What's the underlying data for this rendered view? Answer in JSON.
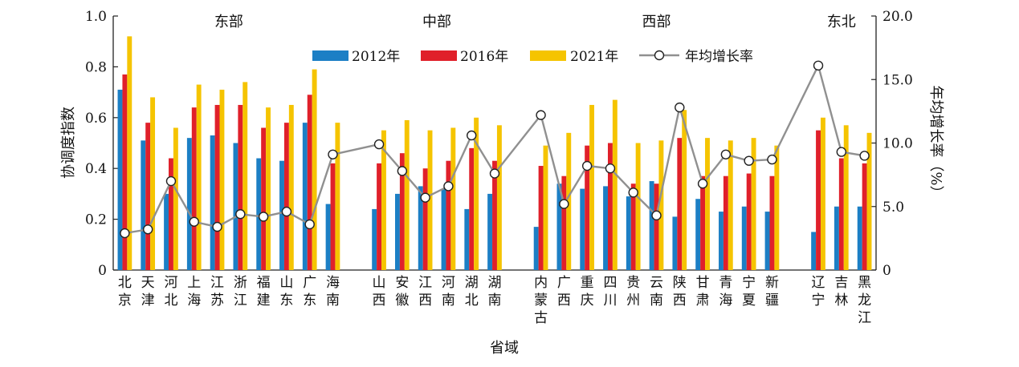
{
  "chart_data": {
    "type": "bar",
    "xlabel": "省域",
    "ylabel": "协调度指数",
    "y2label": "年均增长率（%）",
    "ylim": [
      0,
      1.0
    ],
    "y2lim": [
      0,
      20.0
    ],
    "yticks": [
      "0",
      "0.2",
      "0.4",
      "0.6",
      "0.8",
      "1.0"
    ],
    "y2ticks": [
      "0",
      "5.0",
      "10.0",
      "15.0",
      "20.0"
    ],
    "legend": [
      "2012年",
      "2016年",
      "2021年",
      "年均增长率"
    ],
    "colors": {
      "s2012": "#1c7fc5",
      "s2016": "#e0202a",
      "s2021": "#f5c400",
      "rate": "#909090"
    },
    "regions": [
      {
        "name": "东部",
        "provinces": [
          {
            "label": [
              "北",
              "京"
            ],
            "v2012": 0.71,
            "v2016": 0.77,
            "v2021": 0.92,
            "rate": 2.9
          },
          {
            "label": [
              "天",
              "津"
            ],
            "v2012": 0.51,
            "v2016": 0.58,
            "v2021": 0.68,
            "rate": 3.2
          },
          {
            "label": [
              "河",
              "北"
            ],
            "v2012": 0.3,
            "v2016": 0.44,
            "v2021": 0.56,
            "rate": 7.0
          },
          {
            "label": [
              "上",
              "海"
            ],
            "v2012": 0.52,
            "v2016": 0.64,
            "v2021": 0.73,
            "rate": 3.8
          },
          {
            "label": [
              "江",
              "苏"
            ],
            "v2012": 0.53,
            "v2016": 0.65,
            "v2021": 0.71,
            "rate": 3.4
          },
          {
            "label": [
              "浙",
              "江"
            ],
            "v2012": 0.5,
            "v2016": 0.65,
            "v2021": 0.74,
            "rate": 4.4
          },
          {
            "label": [
              "福",
              "建"
            ],
            "v2012": 0.44,
            "v2016": 0.56,
            "v2021": 0.64,
            "rate": 4.2
          },
          {
            "label": [
              "山",
              "东"
            ],
            "v2012": 0.43,
            "v2016": 0.58,
            "v2021": 0.65,
            "rate": 4.6
          },
          {
            "label": [
              "广",
              "东"
            ],
            "v2012": 0.58,
            "v2016": 0.69,
            "v2021": 0.79,
            "rate": 3.6
          },
          {
            "label": [
              "海",
              "南"
            ],
            "v2012": 0.26,
            "v2016": 0.42,
            "v2021": 0.58,
            "rate": 9.1
          }
        ]
      },
      {
        "name": "中部",
        "provinces": [
          {
            "label": [
              "山",
              "西"
            ],
            "v2012": 0.24,
            "v2016": 0.42,
            "v2021": 0.55,
            "rate": 9.9
          },
          {
            "label": [
              "安",
              "徽"
            ],
            "v2012": 0.3,
            "v2016": 0.46,
            "v2021": 0.59,
            "rate": 7.8
          },
          {
            "label": [
              "江",
              "西"
            ],
            "v2012": 0.33,
            "v2016": 0.4,
            "v2021": 0.55,
            "rate": 5.7
          },
          {
            "label": [
              "河",
              "南"
            ],
            "v2012": 0.32,
            "v2016": 0.43,
            "v2021": 0.56,
            "rate": 6.6
          },
          {
            "label": [
              "湖",
              "北"
            ],
            "v2012": 0.24,
            "v2016": 0.48,
            "v2021": 0.6,
            "rate": 10.6
          },
          {
            "label": [
              "湖",
              "南"
            ],
            "v2012": 0.3,
            "v2016": 0.43,
            "v2021": 0.57,
            "rate": 7.6
          }
        ]
      },
      {
        "name": "西部",
        "provinces": [
          {
            "label": [
              "内",
              "蒙",
              "古"
            ],
            "v2012": 0.17,
            "v2016": 0.41,
            "v2021": 0.49,
            "rate": 12.2
          },
          {
            "label": [
              "广",
              "西"
            ],
            "v2012": 0.34,
            "v2016": 0.37,
            "v2021": 0.54,
            "rate": 5.2
          },
          {
            "label": [
              "重",
              "庆"
            ],
            "v2012": 0.32,
            "v2016": 0.49,
            "v2021": 0.65,
            "rate": 8.2
          },
          {
            "label": [
              "四",
              "川"
            ],
            "v2012": 0.33,
            "v2016": 0.5,
            "v2021": 0.67,
            "rate": 8.0
          },
          {
            "label": [
              "贵",
              "州"
            ],
            "v2012": 0.29,
            "v2016": 0.34,
            "v2021": 0.5,
            "rate": 6.1
          },
          {
            "label": [
              "云",
              "南"
            ],
            "v2012": 0.35,
            "v2016": 0.34,
            "v2021": 0.51,
            "rate": 4.3
          },
          {
            "label": [
              "陕",
              "西"
            ],
            "v2012": 0.21,
            "v2016": 0.52,
            "v2021": 0.63,
            "rate": 12.8
          },
          {
            "label": [
              "甘",
              "肃"
            ],
            "v2012": 0.28,
            "v2016": 0.37,
            "v2021": 0.52,
            "rate": 6.8
          },
          {
            "label": [
              "青",
              "海"
            ],
            "v2012": 0.23,
            "v2016": 0.37,
            "v2021": 0.51,
            "rate": 9.1
          },
          {
            "label": [
              "宁",
              "夏"
            ],
            "v2012": 0.25,
            "v2016": 0.38,
            "v2021": 0.52,
            "rate": 8.6
          },
          {
            "label": [
              "新",
              "疆"
            ],
            "v2012": 0.23,
            "v2016": 0.37,
            "v2021": 0.49,
            "rate": 8.7
          }
        ]
      },
      {
        "name": "东北",
        "provinces": [
          {
            "label": [
              "辽",
              "宁"
            ],
            "v2012": 0.15,
            "v2016": 0.55,
            "v2021": 0.6,
            "rate": 16.1
          },
          {
            "label": [
              "吉",
              "林"
            ],
            "v2012": 0.25,
            "v2016": 0.44,
            "v2021": 0.57,
            "rate": 9.3
          },
          {
            "label": [
              "黑",
              "龙",
              "江"
            ],
            "v2012": 0.25,
            "v2016": 0.42,
            "v2021": 0.54,
            "rate": 9.0
          }
        ]
      }
    ]
  }
}
